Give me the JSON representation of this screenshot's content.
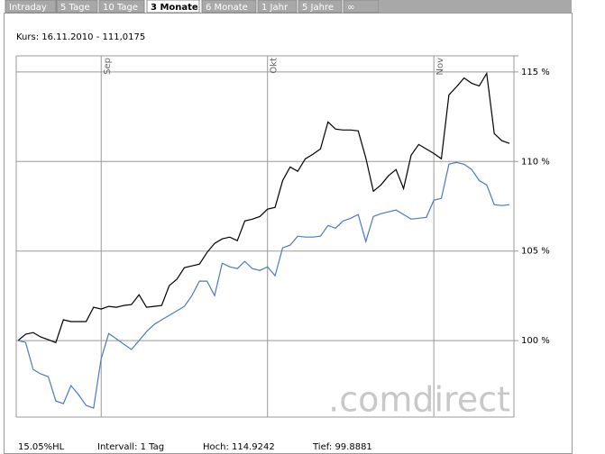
{
  "tabs": [
    "Intraday",
    "5 Tage",
    "10 Tage",
    "3 Monate",
    "6 Monate",
    "1 Jahr",
    "5 Jahre",
    "∞"
  ],
  "chart_data": {
    "type": "line",
    "subtitle": "Kurs: 16.11.2010 - 111,0175",
    "categories": [
      null,
      null,
      null,
      null,
      null,
      null,
      null,
      null,
      null,
      null,
      null,
      "Sep",
      null,
      null,
      null,
      null,
      null,
      null,
      null,
      null,
      null,
      null,
      null,
      null,
      null,
      null,
      null,
      null,
      null,
      null,
      null,
      null,
      null,
      "Okt",
      null,
      null,
      null,
      null,
      null,
      null,
      null,
      null,
      null,
      null,
      null,
      null,
      null,
      null,
      null,
      null,
      null,
      null,
      null,
      null,
      null,
      "Nov",
      null,
      null,
      null,
      null,
      null,
      null,
      null,
      null,
      null,
      null
    ],
    "series": [
      {
        "color": "#000000",
        "values": [
          100.0,
          100.35,
          100.45,
          100.2,
          100.05,
          99.89,
          101.16,
          101.06,
          101.06,
          101.06,
          101.86,
          101.76,
          101.91,
          101.86,
          101.96,
          102.01,
          102.56,
          101.86,
          101.91,
          101.96,
          103.07,
          103.42,
          104.07,
          104.17,
          104.27,
          104.92,
          105.43,
          105.68,
          105.78,
          105.58,
          106.68,
          106.78,
          106.93,
          107.34,
          107.44,
          108.94,
          109.7,
          109.45,
          110.15,
          110.4,
          110.7,
          112.21,
          111.81,
          111.76,
          111.76,
          111.71,
          110.2,
          108.34,
          108.69,
          109.2,
          109.55,
          108.49,
          110.35,
          110.95,
          110.7,
          110.45,
          110.15,
          113.72,
          114.17,
          114.67,
          114.37,
          114.22,
          114.92,
          111.56,
          111.16,
          111.01
        ]
      },
      {
        "color": "#4a78c8",
        "values": [
          100.0,
          99.9,
          98.39,
          98.14,
          97.99,
          96.63,
          96.48,
          97.49,
          96.98,
          96.38,
          96.23,
          98.99,
          100.4,
          100.1,
          99.8,
          99.5,
          100.0,
          100.5,
          100.9,
          101.16,
          101.41,
          101.66,
          101.91,
          102.51,
          103.32,
          103.32,
          102.51,
          104.32,
          104.12,
          104.02,
          104.42,
          104.02,
          103.92,
          104.12,
          103.62,
          105.18,
          105.33,
          105.83,
          105.78,
          105.78,
          105.83,
          106.43,
          106.28,
          106.68,
          106.83,
          107.04,
          105.53,
          106.93,
          107.09,
          107.19,
          107.29,
          107.04,
          106.78,
          106.83,
          106.88,
          107.84,
          107.94,
          109.85,
          109.95,
          109.85,
          109.55,
          108.94,
          108.69,
          107.59,
          107.54,
          107.59
        ]
      }
    ],
    "ylim": [
      95.73,
      115.9
    ],
    "yticks": [
      {
        "value": 100,
        "label": "100 %"
      },
      {
        "value": 105,
        "label": "105 %"
      },
      {
        "value": 110,
        "label": "110 %"
      },
      {
        "value": 115,
        "label": "115 %"
      }
    ],
    "grid": true,
    "watermark": ".comdirect",
    "footer": [
      "15.05%HL",
      "Intervall: 1 Tag",
      "Hoch: 114.9242",
      "Tief: 99.8881"
    ]
  }
}
